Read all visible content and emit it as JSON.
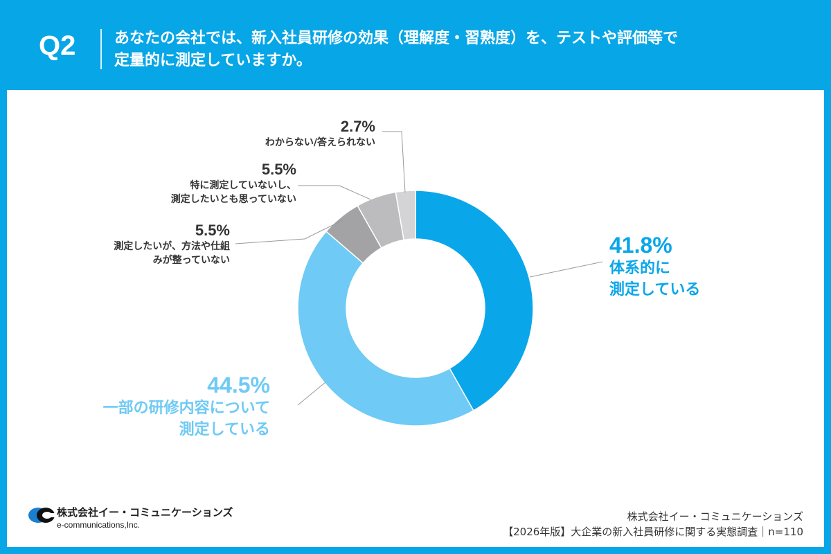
{
  "header": {
    "q_label": "Q2",
    "question_line1": "あなたの会社では、新入社員研修の効果（理解度・習熟度）を、テストや評価等で",
    "question_line2": "定量的に測定していますか。"
  },
  "chart_data": {
    "type": "pie",
    "donut": true,
    "slices": [
      {
        "label": "体系的に測定している",
        "label_lines": [
          "体系的に",
          "測定している"
        ],
        "value": 41.8,
        "display": "41.8%",
        "color": "#0aa6ea"
      },
      {
        "label": "一部の研修内容について測定している",
        "label_lines": [
          "一部の研修内容について",
          "測定している"
        ],
        "value": 44.5,
        "display": "44.5%",
        "color": "#6fcaf5"
      },
      {
        "label": "測定したいが、方法や仕組みが整っていない",
        "label_lines": [
          "測定したいが、方法や仕組",
          "みが整っていない"
        ],
        "value": 5.5,
        "display": "5.5%",
        "color": "#a3a3a5"
      },
      {
        "label": "特に測定していないし、測定したいとも思っていない",
        "label_lines": [
          "特に測定していないし、",
          "測定したいとも思っていない"
        ],
        "value": 5.5,
        "display": "5.5%",
        "color": "#bcbcbe"
      },
      {
        "label": "わからない/答えられない",
        "label_lines": [
          "わからない/答えられない"
        ],
        "value": 2.7,
        "display": "2.7%",
        "color": "#d4d4d6"
      }
    ]
  },
  "footer": {
    "company_jp": "株式会社イー・コミュニケーションズ",
    "company_en": "e-communications,Inc.",
    "source_line1": "株式会社イー・コミュニケーションズ",
    "source_line2": "【2026年版】大企業の新入社員研修に関する実態調査｜n=110"
  }
}
